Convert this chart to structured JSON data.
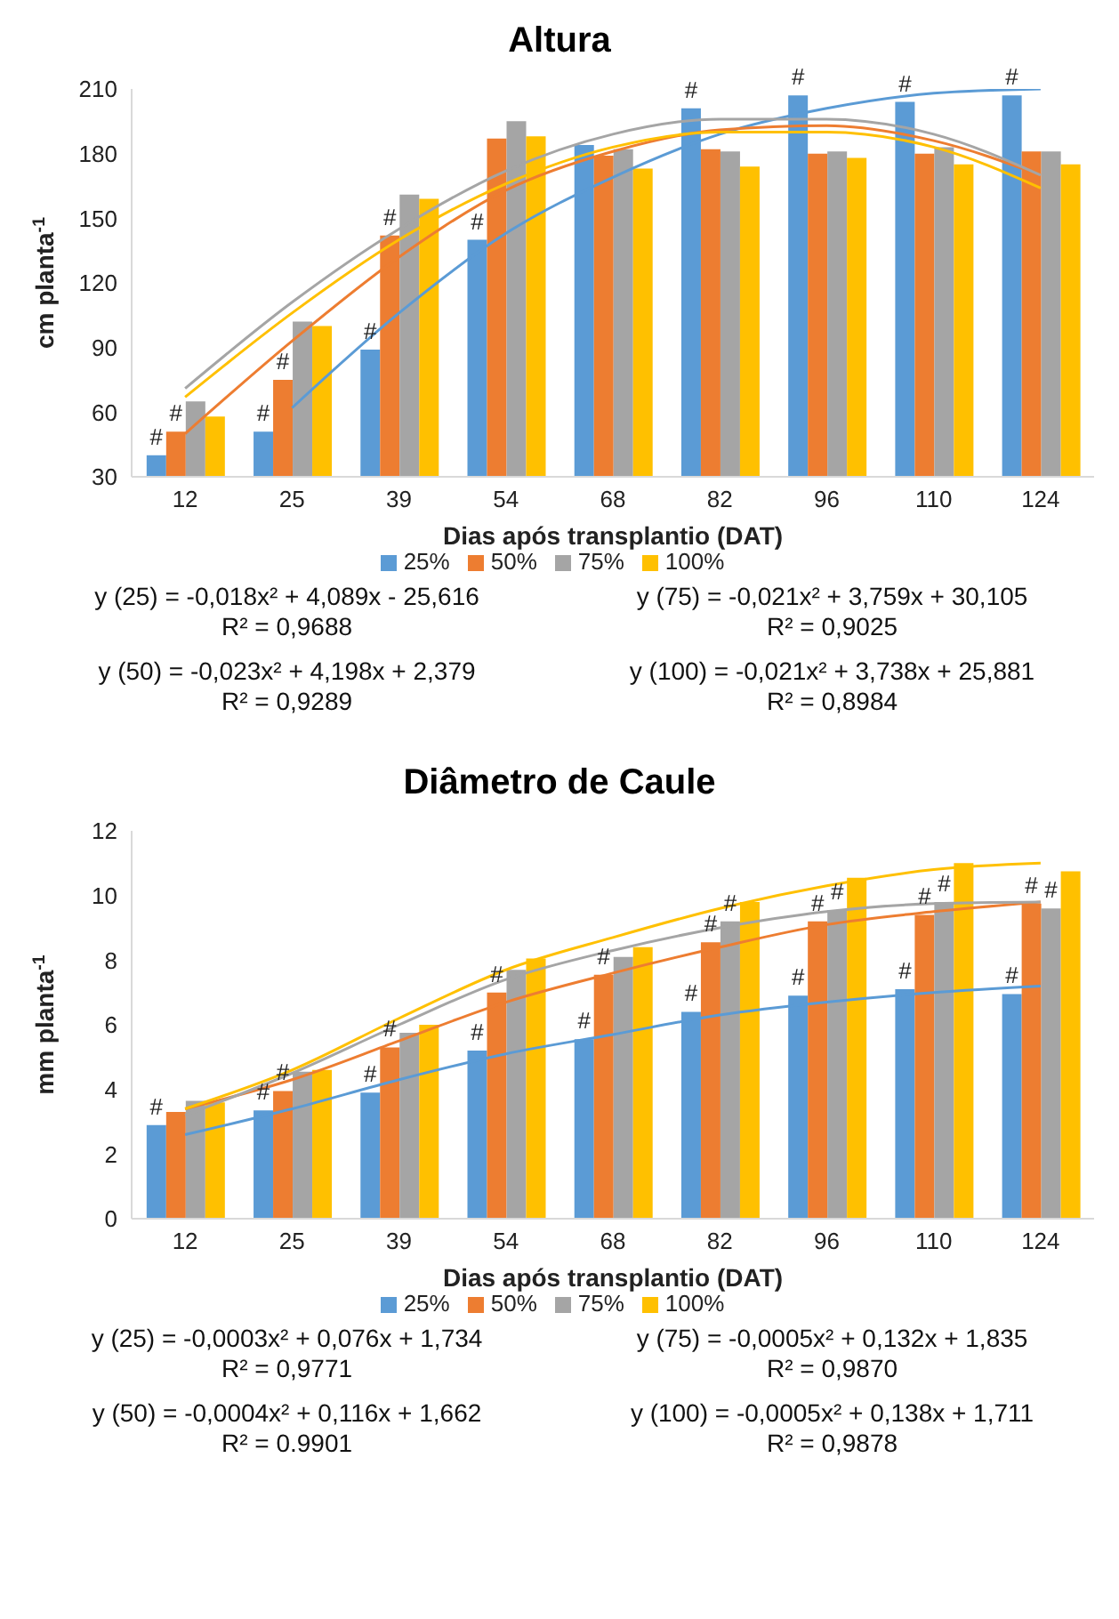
{
  "chart_data": [
    {
      "type": "bar",
      "title": "Altura",
      "xlabel": "Dias após transplantio (DAT)",
      "ylabel": "cm planta$^{-1}$",
      "categories": [
        "12",
        "25",
        "39",
        "54",
        "68",
        "82",
        "96",
        "110",
        "124"
      ],
      "ylim": [
        30,
        210
      ],
      "yticks": [
        30,
        60,
        90,
        120,
        150,
        180,
        210
      ],
      "legend": "bottom",
      "series": [
        {
          "name": "25%",
          "color": "#5b9bd5",
          "values": [
            40,
            51,
            89,
            140,
            184,
            201,
            207,
            204,
            207
          ],
          "value_labels": [
            "#",
            "#",
            "#",
            "#",
            null,
            "#",
            "#",
            "#",
            "#"
          ]
        },
        {
          "name": "50%",
          "color": "#ed7d31",
          "values": [
            51,
            75,
            142,
            187,
            179,
            182,
            180,
            180,
            181
          ],
          "value_labels": [
            "#",
            "#",
            "#",
            null,
            null,
            null,
            null,
            null,
            null
          ]
        },
        {
          "name": "75%",
          "color": "#a5a5a5",
          "values": [
            65,
            102,
            161,
            195,
            182,
            181,
            181,
            183,
            181
          ]
        },
        {
          "name": "100%",
          "color": "#ffc000",
          "values": [
            58,
            100,
            159,
            188,
            173,
            174,
            178,
            175,
            175
          ]
        },
        {
          "type": "line",
          "color": "#5b9bd5",
          "values": [
            null,
            62,
            106,
            143,
            169,
            189,
            201,
            208,
            210
          ]
        },
        {
          "type": "line",
          "color": "#ed7d31",
          "values": [
            50,
            93,
            132,
            163,
            181,
            191,
            193,
            186,
            170
          ]
        },
        {
          "type": "line",
          "color": "#a5a5a5",
          "values": [
            71,
            111,
            145,
            172,
            189,
            196,
            196,
            189,
            170
          ]
        },
        {
          "type": "line",
          "color": "#ffc000",
          "values": [
            67,
            106,
            140,
            166,
            183,
            190,
            190,
            183,
            164
          ]
        }
      ],
      "annotations": [
        "y (25) = -0,018x² + 4,089x - 25,616",
        "R² = 0,9688",
        "y (75) = -0,021x² + 3,759x + 30,105",
        "R² = 0,9025",
        "y (50) = -0,023x² + 4,198x + 2,379",
        "R² = 0,9289",
        "y (100) = -0,021x² + 3,738x + 25,881",
        "R² = 0,8984"
      ]
    },
    {
      "type": "bar",
      "title": "Diâmetro de Caule",
      "xlabel": "Dias após transplantio (DAT)",
      "ylabel": "mm planta$^{-1}$",
      "categories": [
        "12",
        "25",
        "39",
        "54",
        "68",
        "82",
        "96",
        "110",
        "124"
      ],
      "ylim": [
        0,
        12
      ],
      "yticks": [
        0,
        2,
        4,
        6,
        8,
        10,
        12
      ],
      "legend": "bottom",
      "series": [
        {
          "name": "25%",
          "color": "#5b9bd5",
          "values": [
            2.9,
            3.35,
            3.9,
            5.2,
            5.55,
            6.4,
            6.9,
            7.1,
            6.95
          ],
          "value_labels": [
            "#",
            "#",
            "#",
            "#",
            "#",
            "#",
            "#",
            "#",
            "#"
          ]
        },
        {
          "name": "50%",
          "color": "#ed7d31",
          "values": [
            3.3,
            3.95,
            5.3,
            7.0,
            7.55,
            8.55,
            9.2,
            9.4,
            9.75
          ],
          "value_labels": [
            null,
            "#",
            "#",
            "#",
            "#",
            "#",
            "#",
            "#",
            "#"
          ]
        },
        {
          "name": "75%",
          "color": "#a5a5a5",
          "values": [
            3.65,
            4.55,
            5.75,
            7.7,
            8.1,
            9.2,
            9.55,
            9.8,
            9.6
          ],
          "value_labels": [
            null,
            null,
            null,
            null,
            null,
            "#",
            "#",
            "#",
            "#"
          ]
        },
        {
          "name": "100%",
          "color": "#ffc000",
          "values": [
            3.6,
            4.6,
            6.0,
            8.05,
            8.4,
            9.8,
            10.55,
            11.0,
            10.75
          ]
        },
        {
          "type": "line",
          "color": "#5b9bd5",
          "values": [
            2.6,
            3.4,
            4.3,
            5.1,
            5.7,
            6.3,
            6.7,
            7.0,
            7.2
          ]
        },
        {
          "type": "line",
          "color": "#ed7d31",
          "values": [
            3.4,
            4.3,
            5.5,
            6.7,
            7.6,
            8.4,
            9.1,
            9.5,
            9.8
          ]
        },
        {
          "type": "line",
          "color": "#a5a5a5",
          "values": [
            3.2,
            4.5,
            6.0,
            7.4,
            8.3,
            9.0,
            9.5,
            9.75,
            9.8
          ]
        },
        {
          "type": "line",
          "color": "#ffc000",
          "values": [
            3.4,
            4.6,
            6.2,
            7.7,
            8.7,
            9.6,
            10.3,
            10.8,
            11.0
          ]
        }
      ],
      "annotations": [
        "y (25) = -0,0003x² + 0,076x + 1,734",
        "R² = 0,9771",
        "y (75) = -0,0005x² + 0,132x + 1,835",
        "R² = 0,9870",
        "y (50) = -0,0004x² + 0,116x + 1,662",
        "R² = 0.9901",
        "y (100) = -0,0005x² + 0,138x + 1,711",
        "R² = 0,9878"
      ]
    }
  ]
}
